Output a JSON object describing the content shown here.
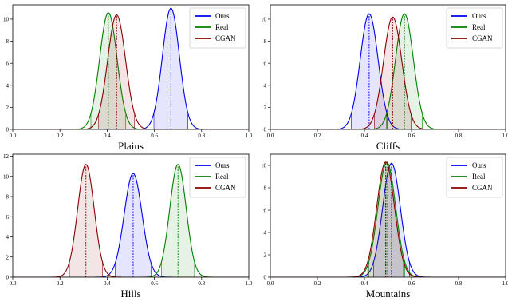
{
  "colors": {
    "Ours": "#0000ee",
    "Real": "#008000",
    "CGAN": "#8b0000"
  },
  "chart_data": [
    {
      "type": "area",
      "title": "Plains",
      "xlim": [
        0,
        1
      ],
      "ylim": [
        0,
        11.3
      ],
      "xticks": [
        "0.0",
        "0.2",
        "0.4",
        "0.6",
        "0.8",
        "1.0"
      ],
      "xtick_values": [
        0,
        0.2,
        0.4,
        0.6,
        0.8,
        1.0
      ],
      "yticks": [
        "0",
        "2",
        "4",
        "6",
        "8",
        "10"
      ],
      "ytick_values": [
        0,
        2,
        4,
        6,
        8,
        10
      ],
      "legend_position": "upper right",
      "series": [
        {
          "name": "Ours",
          "mean": 0.67,
          "std": 0.036,
          "peak": 11.0
        },
        {
          "name": "Real",
          "mean": 0.405,
          "std": 0.037,
          "peak": 10.6
        },
        {
          "name": "CGAN",
          "mean": 0.44,
          "std": 0.038,
          "peak": 10.4
        }
      ]
    },
    {
      "type": "area",
      "title": "Cliffs",
      "xlim": [
        0,
        1
      ],
      "ylim": [
        0,
        11.3
      ],
      "xticks": [
        "0.0",
        "0.2",
        "0.4",
        "0.6",
        "0.8",
        "1.0"
      ],
      "xtick_values": [
        0,
        0.2,
        0.4,
        0.6,
        0.8,
        1.0
      ],
      "yticks": [
        "0",
        "2",
        "4",
        "6",
        "8",
        "10"
      ],
      "ytick_values": [
        0,
        2,
        4,
        6,
        8,
        10
      ],
      "legend_position": "upper right",
      "series": [
        {
          "name": "Ours",
          "mean": 0.42,
          "std": 0.038,
          "peak": 10.5
        },
        {
          "name": "Real",
          "mean": 0.57,
          "std": 0.038,
          "peak": 10.5
        },
        {
          "name": "CGAN",
          "mean": 0.52,
          "std": 0.039,
          "peak": 10.2
        }
      ]
    },
    {
      "type": "area",
      "title": "Hills",
      "xlim": [
        0,
        1
      ],
      "ylim": [
        0,
        12.2
      ],
      "xticks": [
        "0.0",
        "0.2",
        "0.4",
        "0.6",
        "0.8",
        "1.0"
      ],
      "xtick_values": [
        0,
        0.2,
        0.4,
        0.6,
        0.8,
        1.0
      ],
      "yticks": [
        "0",
        "2",
        "4",
        "6",
        "8",
        "10",
        "12"
      ],
      "ytick_values": [
        0,
        2,
        4,
        6,
        8,
        10,
        12
      ],
      "legend_position": "upper right",
      "series": [
        {
          "name": "Ours",
          "mean": 0.51,
          "std": 0.038,
          "peak": 10.3
        },
        {
          "name": "Real",
          "mean": 0.7,
          "std": 0.035,
          "peak": 11.2
        },
        {
          "name": "CGAN",
          "mean": 0.31,
          "std": 0.035,
          "peak": 11.2
        }
      ]
    },
    {
      "type": "area",
      "title": "Mountains",
      "xlim": [
        0,
        1
      ],
      "ylim": [
        0,
        11.0
      ],
      "xticks": [
        "0.0",
        "0.2",
        "0.4",
        "0.6",
        "0.8",
        "1.0"
      ],
      "xtick_values": [
        0,
        0.2,
        0.4,
        0.6,
        0.8,
        1.0
      ],
      "yticks": [
        "0",
        "2",
        "4",
        "6",
        "8",
        "10"
      ],
      "ytick_values": [
        0,
        2,
        4,
        6,
        8,
        10
      ],
      "legend_position": "upper right",
      "series": [
        {
          "name": "Ours",
          "mean": 0.515,
          "std": 0.038,
          "peak": 10.2
        },
        {
          "name": "Real",
          "mean": 0.495,
          "std": 0.038,
          "peak": 10.3
        },
        {
          "name": "CGAN",
          "mean": 0.49,
          "std": 0.038,
          "peak": 10.3
        }
      ]
    }
  ]
}
